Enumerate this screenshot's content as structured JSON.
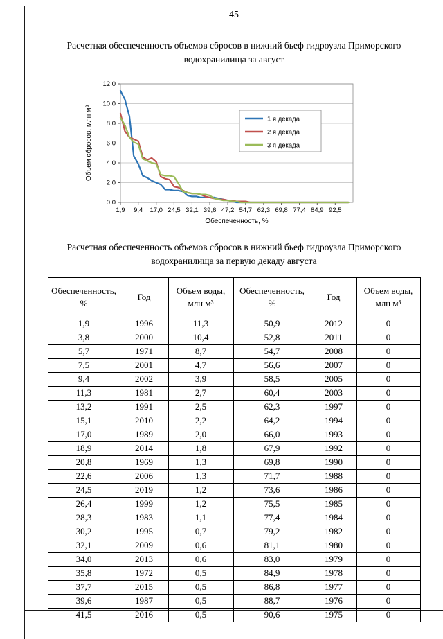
{
  "page": {
    "number": "45"
  },
  "chart_title": "Расчетная обеспеченность объемов сбросов в нижний бьеф гидроузла Приморского водохранилища за август",
  "table_title": "Расчетная обеспеченность объемов сбросов в нижний бьеф гидроузла Приморского водохранилища за первую декаду августа",
  "chart_data": {
    "type": "line",
    "title": "Расчетная обеспеченность объемов сбросов в нижний бьеф гидроузла Приморского водохранилища за август",
    "xlabel": "Обеспеченность, %",
    "ylabel": "Объем сбросов, млн м³",
    "ylim": [
      0,
      12
    ],
    "ytick_step": 2,
    "ytick_labels": [
      "0,0",
      "2,0",
      "4,0",
      "6,0",
      "8,0",
      "10,0",
      "12,0"
    ],
    "xtick_labels": [
      "1,9",
      "9,4",
      "17,0",
      "24,5",
      "32,1",
      "39,6",
      "47,2",
      "54,7",
      "62,3",
      "69,8",
      "77,4",
      "84,9",
      "92,5"
    ],
    "grid": "horizontal",
    "legend_position": "right-inside",
    "x": [
      1.9,
      3.8,
      5.7,
      7.5,
      9.4,
      11.3,
      13.2,
      15.1,
      17.0,
      18.9,
      20.8,
      22.6,
      24.5,
      26.4,
      28.3,
      30.2,
      32.1,
      34.0,
      35.8,
      37.7,
      39.6,
      41.5,
      43.4,
      45.3,
      47.2,
      49.1,
      50.9,
      52.8,
      54.7,
      56.6,
      58.5,
      60.4,
      62.3,
      64.2,
      66.0,
      67.9,
      69.8,
      71.7,
      73.6,
      75.5,
      77.4,
      79.2,
      81.1,
      83.0,
      84.9,
      86.8,
      88.7,
      90.6,
      92.5,
      94.3,
      96.2,
      98.1
    ],
    "series": [
      {
        "name": "1 я декада",
        "color": "#2E75B6",
        "values": [
          11.3,
          10.4,
          8.7,
          4.7,
          3.9,
          2.7,
          2.5,
          2.2,
          2.0,
          1.8,
          1.3,
          1.3,
          1.2,
          1.2,
          1.1,
          0.7,
          0.6,
          0.6,
          0.5,
          0.5,
          0.5,
          0.5,
          0.4,
          0.3,
          0.2,
          0.1,
          0,
          0,
          0,
          0,
          0,
          0,
          0,
          0,
          0,
          0,
          0,
          0,
          0,
          0,
          0,
          0,
          0,
          0,
          0,
          0,
          0,
          0,
          0,
          0,
          0,
          0
        ]
      },
      {
        "name": "2 я декада",
        "color": "#C0504D",
        "values": [
          9.0,
          7.2,
          6.6,
          6.4,
          6.2,
          4.6,
          4.3,
          4.5,
          4.1,
          2.6,
          2.4,
          2.3,
          1.6,
          1.5,
          1.2,
          1.0,
          0.9,
          0.9,
          0.8,
          0.6,
          0.5,
          0.4,
          0.3,
          0.3,
          0.2,
          0.2,
          0.1,
          0.1,
          0.1,
          0,
          0,
          0,
          0,
          0,
          0,
          0,
          0,
          0,
          0,
          0,
          0,
          0,
          0,
          0,
          0,
          0,
          0,
          0,
          0,
          0,
          0,
          0
        ]
      },
      {
        "name": "3 я декада",
        "color": "#9BBB59",
        "values": [
          8.6,
          7.8,
          6.6,
          6.1,
          5.9,
          4.4,
          4.2,
          4.0,
          3.9,
          2.8,
          2.7,
          2.7,
          2.6,
          1.9,
          1.1,
          1.0,
          0.9,
          0.9,
          0.8,
          0.8,
          0.7,
          0.4,
          0.3,
          0.2,
          0.2,
          0.1,
          0.1,
          0,
          0,
          0,
          0,
          0,
          0,
          0,
          0,
          0,
          0,
          0,
          0,
          0,
          0,
          0,
          0,
          0,
          0,
          0,
          0,
          0,
          0,
          0,
          0,
          0
        ]
      }
    ]
  },
  "table": {
    "headers": [
      "Обеспеченность, %",
      "Год",
      "Объем воды, млн м³",
      "Обеспеченность, %",
      "Год",
      "Объем воды, млн м³"
    ],
    "rows": [
      [
        "1,9",
        "1996",
        "11,3",
        "50,9",
        "2012",
        "0"
      ],
      [
        "3,8",
        "2000",
        "10,4",
        "52,8",
        "2011",
        "0"
      ],
      [
        "5,7",
        "1971",
        "8,7",
        "54,7",
        "2008",
        "0"
      ],
      [
        "7,5",
        "2001",
        "4,7",
        "56,6",
        "2007",
        "0"
      ],
      [
        "9,4",
        "2002",
        "3,9",
        "58,5",
        "2005",
        "0"
      ],
      [
        "11,3",
        "1981",
        "2,7",
        "60,4",
        "2003",
        "0"
      ],
      [
        "13,2",
        "1991",
        "2,5",
        "62,3",
        "1997",
        "0"
      ],
      [
        "15,1",
        "2010",
        "2,2",
        "64,2",
        "1994",
        "0"
      ],
      [
        "17,0",
        "1989",
        "2,0",
        "66,0",
        "1993",
        "0"
      ],
      [
        "18,9",
        "2014",
        "1,8",
        "67,9",
        "1992",
        "0"
      ],
      [
        "20,8",
        "1969",
        "1,3",
        "69,8",
        "1990",
        "0"
      ],
      [
        "22,6",
        "2006",
        "1,3",
        "71,7",
        "1988",
        "0"
      ],
      [
        "24,5",
        "2019",
        "1,2",
        "73,6",
        "1986",
        "0"
      ],
      [
        "26,4",
        "1999",
        "1,2",
        "75,5",
        "1985",
        "0"
      ],
      [
        "28,3",
        "1983",
        "1,1",
        "77,4",
        "1984",
        "0"
      ],
      [
        "30,2",
        "1995",
        "0,7",
        "79,2",
        "1982",
        "0"
      ],
      [
        "32,1",
        "2009",
        "0,6",
        "81,1",
        "1980",
        "0"
      ],
      [
        "34,0",
        "2013",
        "0,6",
        "83,0",
        "1979",
        "0"
      ],
      [
        "35,8",
        "1972",
        "0,5",
        "84,9",
        "1978",
        "0"
      ],
      [
        "37,7",
        "2015",
        "0,5",
        "86,8",
        "1977",
        "0"
      ],
      [
        "39,6",
        "1987",
        "0,5",
        "88,7",
        "1976",
        "0"
      ],
      [
        "41,5",
        "2016",
        "0,5",
        "90,6",
        "1975",
        "0"
      ]
    ]
  }
}
